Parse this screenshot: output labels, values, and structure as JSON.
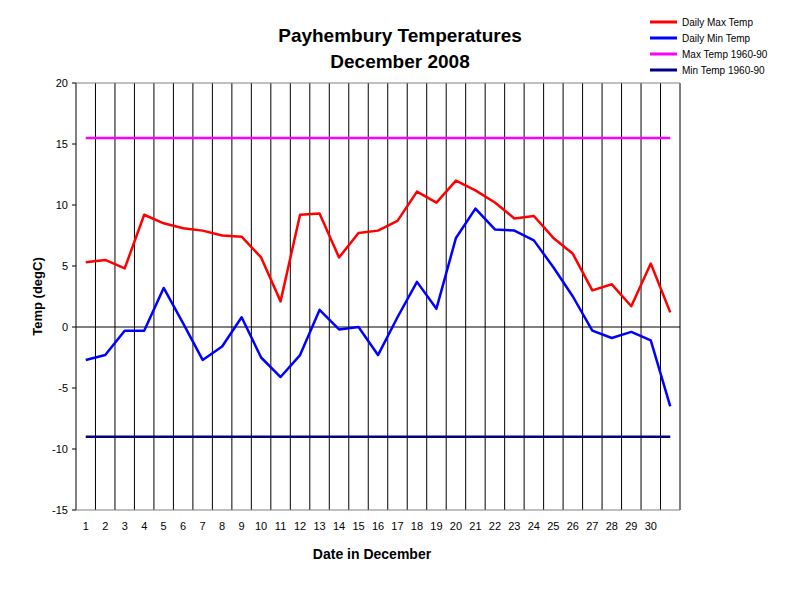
{
  "chart_data": {
    "type": "line",
    "title": "Payhembury Temperatures",
    "subtitle": "December 2008",
    "x_label": "Date in December",
    "y_label": "Temp (degC)",
    "categories": [
      "1",
      "2",
      "3",
      "4",
      "5",
      "6",
      "7",
      "8",
      "9",
      "10",
      "11",
      "12",
      "13",
      "14",
      "15",
      "16",
      "17",
      "18",
      "19",
      "20",
      "21",
      "22",
      "23",
      "24",
      "25",
      "26",
      "27",
      "28",
      "29",
      "30",
      null
    ],
    "series": [
      {
        "name": "Daily Max Temp",
        "color": "#ff0000",
        "values": [
          5.3,
          5.5,
          4.8,
          9.2,
          8.5,
          8.1,
          7.9,
          7.5,
          7.4,
          5.7,
          2.1,
          9.2,
          9.3,
          5.7,
          7.7,
          7.9,
          8.7,
          11.1,
          10.2,
          12.0,
          11.2,
          10.2,
          8.9,
          9.1,
          7.3,
          6.0,
          3.0,
          3.5,
          1.7,
          5.2,
          1.2
        ]
      },
      {
        "name": "Daily Min Temp",
        "color": "#0000ff",
        "values": [
          -2.7,
          -2.3,
          -0.3,
          -0.3,
          3.2,
          0.3,
          -2.7,
          -1.6,
          0.8,
          -2.5,
          -4.1,
          -2.3,
          1.4,
          -0.2,
          0.0,
          -2.3,
          0.8,
          3.7,
          1.5,
          7.3,
          9.7,
          8.0,
          7.9,
          7.1,
          4.9,
          2.5,
          -0.3,
          -0.9,
          -0.4,
          -1.1,
          -6.5
        ]
      },
      {
        "name": "Max Temp 1960-90",
        "color": "#ff00ff",
        "values": [
          15.5,
          15.5,
          15.5,
          15.5,
          15.5,
          15.5,
          15.5,
          15.5,
          15.5,
          15.5,
          15.5,
          15.5,
          15.5,
          15.5,
          15.5,
          15.5,
          15.5,
          15.5,
          15.5,
          15.5,
          15.5,
          15.5,
          15.5,
          15.5,
          15.5,
          15.5,
          15.5,
          15.5,
          15.5,
          15.5,
          15.5
        ]
      },
      {
        "name": "Min Temp 1960-90",
        "color": "#000080",
        "values": [
          -9,
          -9,
          -9,
          -9,
          -9,
          -9,
          -9,
          -9,
          -9,
          -9,
          -9,
          -9,
          -9,
          -9,
          -9,
          -9,
          -9,
          -9,
          -9,
          -9,
          -9,
          -9,
          -9,
          -9,
          -9,
          -9,
          -9,
          -9,
          -9,
          -9,
          -9
        ]
      }
    ],
    "ylim": [
      -15,
      20
    ],
    "yticks": [
      -15,
      -10,
      -5,
      0,
      5,
      10,
      15,
      20
    ],
    "grid": true,
    "legend": "top-right"
  }
}
